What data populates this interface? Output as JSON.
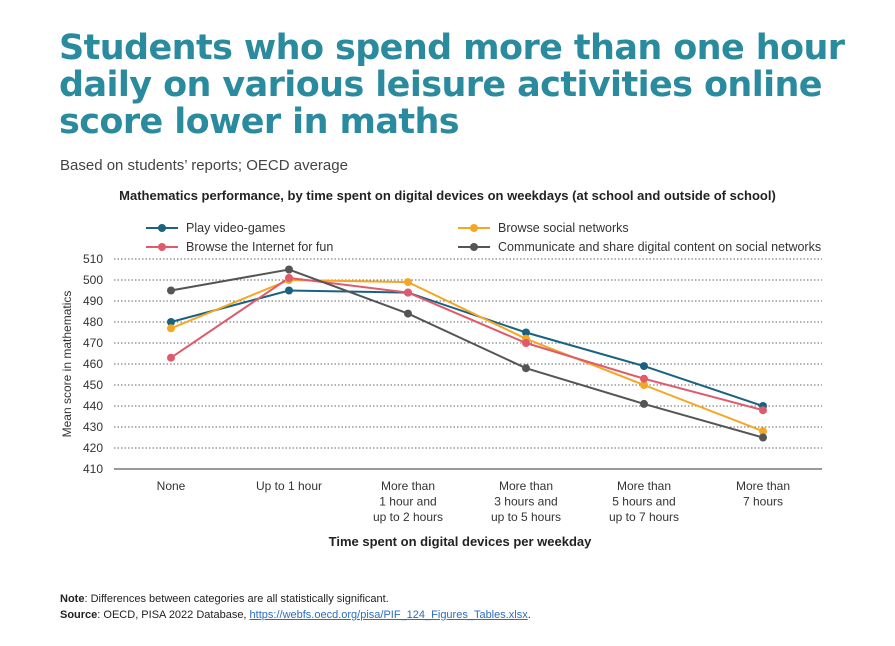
{
  "header": {
    "title": "Students who spend more than one hour daily on various leisure activities online score lower in maths",
    "subtitle": "Based on students’ reports; OECD average"
  },
  "chart_data": {
    "type": "line",
    "title": "Mathematics performance, by time spent on digital devices on weekdays (at school and outside of school)",
    "xlabel": "Time spent on digital devices per weekday",
    "ylabel": "Mean score in mathematics",
    "categories": [
      [
        "None"
      ],
      [
        "Up to 1 hour"
      ],
      [
        "More than",
        "1 hour and",
        "up to 2 hours"
      ],
      [
        "More than",
        "3 hours and",
        "up to 5 hours"
      ],
      [
        "More than",
        "5 hours and",
        "up to 7 hours"
      ],
      [
        "More than",
        "7 hours"
      ]
    ],
    "ylim": [
      410,
      510
    ],
    "yticks": [
      410,
      420,
      430,
      440,
      450,
      460,
      470,
      480,
      490,
      500,
      510
    ],
    "grid": true,
    "legend_position": "top",
    "series": [
      {
        "name": "Play video-games",
        "color": "#1a6380",
        "values": [
          480,
          495,
          494,
          475,
          459,
          440
        ]
      },
      {
        "name": "Browse social networks",
        "color": "#f5a623",
        "values": [
          477,
          500,
          499,
          472,
          450,
          428
        ]
      },
      {
        "name": "Browse the Internet for fun",
        "color": "#e05a6b",
        "values": [
          463,
          501,
          494,
          470,
          453,
          438
        ]
      },
      {
        "name": "Communicate and share digital content on social networks",
        "color": "#555555",
        "values": [
          495,
          505,
          484,
          458,
          441,
          425
        ]
      }
    ]
  },
  "footer": {
    "note_label": "Note",
    "note_text": ": Differences between categories are all statistically significant.",
    "source_label": "Source",
    "source_text": ": OECD, PISA 2022 Database, ",
    "source_link": "https://webfs.oecd.org/pisa/PIF_124_Figures_Tables.xlsx",
    "source_end": "."
  }
}
